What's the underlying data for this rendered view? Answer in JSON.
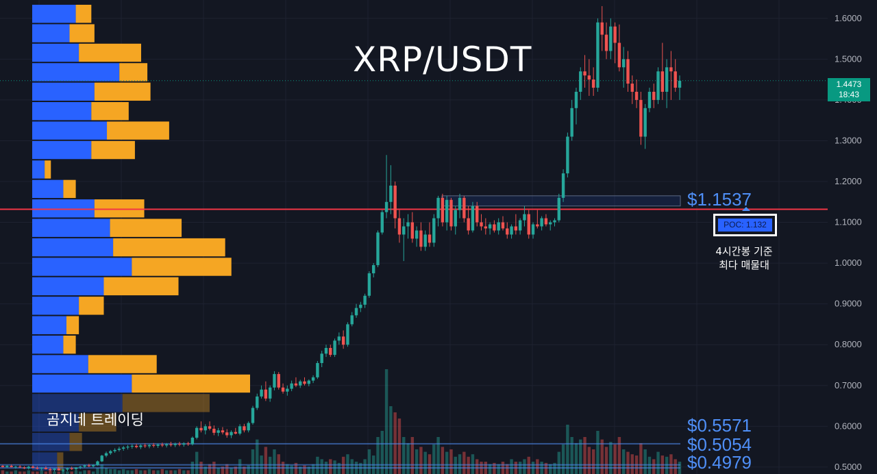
{
  "header": {
    "title": "XRP/USDT",
    "watermark": "곰지네 트레이딩"
  },
  "last_price": {
    "value": "1.4473",
    "countdown": "18:43",
    "color": "#089981"
  },
  "levels": {
    "resistance_label": "$1.1537",
    "support_labels": [
      "$0.5571",
      "$0.5054",
      "$0.4979"
    ],
    "accent_color": "#4f8ff7",
    "poc_line_color": "#f23645"
  },
  "poc": {
    "label": "POC: 1.132",
    "note_line1": "4시간봉 기준",
    "note_line2": "최다 매물대"
  },
  "chart_data": {
    "type": "candlestick",
    "title": "XRP/USDT",
    "ylim": [
      0.483,
      1.645
    ],
    "y_ticks": [
      "1.6000",
      "1.5000",
      "1.4000",
      "1.3000",
      "1.2000",
      "1.1000",
      "1.0000",
      "0.9000",
      "0.8000",
      "0.7000",
      "0.6000",
      "0.5000"
    ],
    "y_tick_values": [
      1.6,
      1.5,
      1.4,
      1.3,
      1.2,
      1.1,
      1.0,
      0.9,
      0.8,
      0.7,
      0.6,
      0.5
    ],
    "grid": true,
    "horizontal_lines": [
      {
        "value": 1.132,
        "color": "#f23645"
      },
      {
        "value": 1.4473,
        "color": "#089981",
        "style": "dotted"
      },
      {
        "value": 0.5571,
        "color": "#4f8ff7"
      },
      {
        "value": 0.5054,
        "color": "#4f8ff7"
      },
      {
        "value": 0.4979,
        "color": "#4f8ff7"
      }
    ],
    "volume_profile": {
      "price_low": 0.49,
      "price_high": 1.635,
      "buy_color": "#2962ff",
      "sell_color": "#f5a623",
      "rows": [
        [
          14,
          5
        ],
        [
          12,
          8
        ],
        [
          15,
          20
        ],
        [
          28,
          9
        ],
        [
          20,
          18
        ],
        [
          19,
          12
        ],
        [
          24,
          20
        ],
        [
          19,
          14
        ],
        [
          4,
          2
        ],
        [
          10,
          4
        ],
        [
          20,
          16
        ],
        [
          25,
          23
        ],
        [
          26,
          36
        ],
        [
          32,
          32
        ],
        [
          23,
          24
        ],
        [
          15,
          8
        ],
        [
          11,
          4
        ],
        [
          10,
          4
        ],
        [
          18,
          22
        ],
        [
          32,
          38
        ],
        [
          29,
          28
        ],
        [
          15,
          12
        ],
        [
          12,
          4
        ],
        [
          8,
          2
        ]
      ]
    },
    "candles": [
      [
        0.503,
        0.505,
        0.499,
        0.5
      ],
      [
        0.5,
        0.505,
        0.498,
        0.503
      ],
      [
        0.503,
        0.506,
        0.499,
        0.5
      ],
      [
        0.5,
        0.503,
        0.496,
        0.501
      ],
      [
        0.501,
        0.505,
        0.498,
        0.499
      ],
      [
        0.499,
        0.502,
        0.495,
        0.497
      ],
      [
        0.497,
        0.503,
        0.494,
        0.501
      ],
      [
        0.501,
        0.504,
        0.497,
        0.498
      ],
      [
        0.498,
        0.502,
        0.494,
        0.496
      ],
      [
        0.496,
        0.5,
        0.492,
        0.498
      ],
      [
        0.498,
        0.502,
        0.494,
        0.495
      ],
      [
        0.495,
        0.499,
        0.49,
        0.493
      ],
      [
        0.493,
        0.498,
        0.489,
        0.496
      ],
      [
        0.496,
        0.5,
        0.491,
        0.492
      ],
      [
        0.492,
        0.496,
        0.488,
        0.494
      ],
      [
        0.494,
        0.499,
        0.49,
        0.497
      ],
      [
        0.497,
        0.501,
        0.493,
        0.495
      ],
      [
        0.495,
        0.5,
        0.492,
        0.499
      ],
      [
        0.499,
        0.503,
        0.495,
        0.501
      ],
      [
        0.501,
        0.506,
        0.498,
        0.504
      ],
      [
        0.504,
        0.508,
        0.5,
        0.502
      ],
      [
        0.502,
        0.507,
        0.499,
        0.505
      ],
      [
        0.505,
        0.516,
        0.503,
        0.514
      ],
      [
        0.514,
        0.53,
        0.512,
        0.528
      ],
      [
        0.528,
        0.538,
        0.524,
        0.534
      ],
      [
        0.534,
        0.542,
        0.53,
        0.539
      ],
      [
        0.539,
        0.546,
        0.535,
        0.542
      ],
      [
        0.542,
        0.55,
        0.538,
        0.545
      ],
      [
        0.545,
        0.552,
        0.54,
        0.548
      ],
      [
        0.548,
        0.554,
        0.543,
        0.55
      ],
      [
        0.55,
        0.556,
        0.545,
        0.552
      ],
      [
        0.552,
        0.557,
        0.546,
        0.549
      ],
      [
        0.549,
        0.556,
        0.544,
        0.553
      ],
      [
        0.553,
        0.558,
        0.547,
        0.551
      ],
      [
        0.551,
        0.557,
        0.546,
        0.554
      ],
      [
        0.554,
        0.559,
        0.548,
        0.552
      ],
      [
        0.552,
        0.558,
        0.547,
        0.555
      ],
      [
        0.555,
        0.56,
        0.549,
        0.553
      ],
      [
        0.553,
        0.559,
        0.548,
        0.556
      ],
      [
        0.556,
        0.562,
        0.55,
        0.554
      ],
      [
        0.554,
        0.56,
        0.549,
        0.557
      ],
      [
        0.557,
        0.562,
        0.551,
        0.555
      ],
      [
        0.555,
        0.561,
        0.55,
        0.558
      ],
      [
        0.558,
        0.562,
        0.552,
        0.556
      ],
      [
        0.556,
        0.575,
        0.553,
        0.572
      ],
      [
        0.572,
        0.6,
        0.568,
        0.596
      ],
      [
        0.596,
        0.612,
        0.585,
        0.59
      ],
      [
        0.59,
        0.605,
        0.58,
        0.6
      ],
      [
        0.6,
        0.612,
        0.59,
        0.594
      ],
      [
        0.594,
        0.602,
        0.578,
        0.584
      ],
      [
        0.584,
        0.596,
        0.576,
        0.59
      ],
      [
        0.59,
        0.598,
        0.58,
        0.585
      ],
      [
        0.585,
        0.593,
        0.572,
        0.578
      ],
      [
        0.578,
        0.59,
        0.571,
        0.586
      ],
      [
        0.586,
        0.596,
        0.58,
        0.582
      ],
      [
        0.582,
        0.605,
        0.578,
        0.6
      ],
      [
        0.6,
        0.606,
        0.585,
        0.59
      ],
      [
        0.59,
        0.612,
        0.585,
        0.608
      ],
      [
        0.608,
        0.65,
        0.604,
        0.645
      ],
      [
        0.645,
        0.68,
        0.64,
        0.673
      ],
      [
        0.673,
        0.7,
        0.668,
        0.69
      ],
      [
        0.69,
        0.71,
        0.662,
        0.668
      ],
      [
        0.668,
        0.7,
        0.66,
        0.695
      ],
      [
        0.695,
        0.735,
        0.688,
        0.728
      ],
      [
        0.728,
        0.733,
        0.69,
        0.695
      ],
      [
        0.695,
        0.705,
        0.68,
        0.685
      ],
      [
        0.685,
        0.7,
        0.675,
        0.692
      ],
      [
        0.692,
        0.712,
        0.686,
        0.705
      ],
      [
        0.705,
        0.72,
        0.696,
        0.7
      ],
      [
        0.7,
        0.714,
        0.694,
        0.71
      ],
      [
        0.71,
        0.72,
        0.7,
        0.704
      ],
      [
        0.704,
        0.715,
        0.698,
        0.712
      ],
      [
        0.712,
        0.725,
        0.706,
        0.72
      ],
      [
        0.72,
        0.76,
        0.716,
        0.755
      ],
      [
        0.755,
        0.785,
        0.745,
        0.778
      ],
      [
        0.778,
        0.8,
        0.77,
        0.792
      ],
      [
        0.792,
        0.8,
        0.77,
        0.775
      ],
      [
        0.775,
        0.815,
        0.77,
        0.81
      ],
      [
        0.81,
        0.83,
        0.8,
        0.82
      ],
      [
        0.82,
        0.835,
        0.79,
        0.8
      ],
      [
        0.8,
        0.855,
        0.795,
        0.85
      ],
      [
        0.85,
        0.88,
        0.845,
        0.872
      ],
      [
        0.872,
        0.9,
        0.866,
        0.89
      ],
      [
        0.89,
        0.905,
        0.88,
        0.898
      ],
      [
        0.898,
        0.925,
        0.89,
        0.92
      ],
      [
        0.92,
        0.98,
        0.915,
        0.975
      ],
      [
        0.975,
        1.0,
        0.965,
        0.995
      ],
      [
        0.995,
        1.08,
        0.99,
        1.075
      ],
      [
        1.075,
        1.13,
        1.07,
        1.125
      ],
      [
        1.125,
        1.265,
        1.11,
        1.15
      ],
      [
        1.15,
        1.24,
        1.12,
        1.19
      ],
      [
        1.19,
        1.2,
        1.085,
        1.11
      ],
      [
        1.11,
        1.13,
        1.05,
        1.07
      ],
      [
        1.07,
        1.11,
        1.005,
        1.09
      ],
      [
        1.09,
        1.12,
        1.06,
        1.1
      ],
      [
        1.1,
        1.125,
        1.05,
        1.06
      ],
      [
        1.06,
        1.09,
        1.04,
        1.08
      ],
      [
        1.08,
        1.1,
        1.03,
        1.04
      ],
      [
        1.04,
        1.08,
        1.03,
        1.07
      ],
      [
        1.07,
        1.1,
        1.04,
        1.05
      ],
      [
        1.05,
        1.12,
        1.04,
        1.11
      ],
      [
        1.11,
        1.165,
        1.09,
        1.16
      ],
      [
        1.16,
        1.17,
        1.09,
        1.1
      ],
      [
        1.1,
        1.165,
        1.08,
        1.155
      ],
      [
        1.155,
        1.16,
        1.08,
        1.09
      ],
      [
        1.09,
        1.14,
        1.07,
        1.13
      ],
      [
        1.13,
        1.17,
        1.11,
        1.16
      ],
      [
        1.16,
        1.165,
        1.1,
        1.11
      ],
      [
        1.11,
        1.14,
        1.07,
        1.08
      ],
      [
        1.08,
        1.15,
        1.075,
        1.14
      ],
      [
        1.14,
        1.15,
        1.09,
        1.1
      ],
      [
        1.1,
        1.12,
        1.08,
        1.09
      ],
      [
        1.09,
        1.11,
        1.07,
        1.085
      ],
      [
        1.085,
        1.1,
        1.07,
        1.095
      ],
      [
        1.095,
        1.105,
        1.075,
        1.08
      ],
      [
        1.08,
        1.11,
        1.07,
        1.1
      ],
      [
        1.1,
        1.115,
        1.08,
        1.085
      ],
      [
        1.085,
        1.1,
        1.06,
        1.07
      ],
      [
        1.07,
        1.095,
        1.06,
        1.09
      ],
      [
        1.09,
        1.12,
        1.07,
        1.08
      ],
      [
        1.08,
        1.11,
        1.07,
        1.105
      ],
      [
        1.105,
        1.14,
        1.09,
        1.12
      ],
      [
        1.12,
        1.13,
        1.06,
        1.07
      ],
      [
        1.07,
        1.1,
        1.06,
        1.095
      ],
      [
        1.095,
        1.13,
        1.085,
        1.09
      ],
      [
        1.09,
        1.115,
        1.08,
        1.11
      ],
      [
        1.11,
        1.12,
        1.09,
        1.095
      ],
      [
        1.095,
        1.105,
        1.08,
        1.1
      ],
      [
        1.1,
        1.11,
        1.09,
        1.105
      ],
      [
        1.105,
        1.17,
        1.1,
        1.16
      ],
      [
        1.16,
        1.23,
        1.15,
        1.22
      ],
      [
        1.22,
        1.32,
        1.21,
        1.31
      ],
      [
        1.31,
        1.4,
        1.3,
        1.38
      ],
      [
        1.38,
        1.43,
        1.34,
        1.42
      ],
      [
        1.42,
        1.48,
        1.4,
        1.47
      ],
      [
        1.47,
        1.51,
        1.43,
        1.46
      ],
      [
        1.46,
        1.5,
        1.41,
        1.45
      ],
      [
        1.45,
        1.48,
        1.41,
        1.43
      ],
      [
        1.43,
        1.6,
        1.42,
        1.59
      ],
      [
        1.59,
        1.63,
        1.52,
        1.56
      ],
      [
        1.56,
        1.59,
        1.5,
        1.52
      ],
      [
        1.52,
        1.6,
        1.5,
        1.58
      ],
      [
        1.58,
        1.59,
        1.49,
        1.54
      ],
      [
        1.54,
        1.585,
        1.47,
        1.48
      ],
      [
        1.48,
        1.53,
        1.43,
        1.5
      ],
      [
        1.5,
        1.52,
        1.42,
        1.44
      ],
      [
        1.44,
        1.46,
        1.39,
        1.42
      ],
      [
        1.42,
        1.45,
        1.38,
        1.4
      ],
      [
        1.4,
        1.42,
        1.29,
        1.31
      ],
      [
        1.31,
        1.39,
        1.28,
        1.38
      ],
      [
        1.38,
        1.43,
        1.37,
        1.42
      ],
      [
        1.42,
        1.44,
        1.38,
        1.4
      ],
      [
        1.4,
        1.48,
        1.39,
        1.47
      ],
      [
        1.47,
        1.54,
        1.4,
        1.42
      ],
      [
        1.42,
        1.5,
        1.38,
        1.48
      ],
      [
        1.48,
        1.52,
        1.4,
        1.47
      ],
      [
        1.47,
        1.5,
        1.42,
        1.43
      ],
      [
        1.43,
        1.46,
        1.4,
        1.447
      ]
    ],
    "volumes": [
      0.03,
      0.02,
      0.02,
      0.03,
      0.02,
      0.02,
      0.03,
      0.02,
      0.02,
      0.03,
      0.02,
      0.03,
      0.02,
      0.02,
      0.03,
      0.02,
      0.02,
      0.03,
      0.02,
      0.03,
      0.03,
      0.02,
      0.05,
      0.08,
      0.05,
      0.04,
      0.04,
      0.03,
      0.04,
      0.03,
      0.03,
      0.04,
      0.03,
      0.03,
      0.04,
      0.03,
      0.03,
      0.04,
      0.03,
      0.03,
      0.03,
      0.04,
      0.03,
      0.03,
      0.1,
      0.18,
      0.1,
      0.06,
      0.08,
      0.1,
      0.05,
      0.06,
      0.08,
      0.05,
      0.06,
      0.12,
      0.06,
      0.07,
      0.2,
      0.28,
      0.15,
      0.22,
      0.14,
      0.2,
      0.16,
      0.1,
      0.08,
      0.07,
      0.09,
      0.06,
      0.07,
      0.06,
      0.08,
      0.14,
      0.12,
      0.1,
      0.12,
      0.11,
      0.09,
      0.14,
      0.16,
      0.12,
      0.1,
      0.09,
      0.12,
      0.2,
      0.15,
      0.3,
      0.35,
      0.85,
      0.55,
      0.5,
      0.45,
      0.3,
      0.25,
      0.3,
      0.2,
      0.22,
      0.18,
      0.16,
      0.24,
      0.3,
      0.22,
      0.18,
      0.2,
      0.14,
      0.16,
      0.18,
      0.14,
      0.16,
      0.12,
      0.1,
      0.1,
      0.08,
      0.09,
      0.08,
      0.1,
      0.08,
      0.12,
      0.1,
      0.1,
      0.12,
      0.14,
      0.1,
      0.12,
      0.1,
      0.09,
      0.08,
      0.09,
      0.18,
      0.24,
      0.4,
      0.3,
      0.25,
      0.28,
      0.3,
      0.22,
      0.2,
      0.35,
      0.28,
      0.22,
      0.26,
      0.24,
      0.3,
      0.2,
      0.18,
      0.16,
      0.15,
      0.25,
      0.2,
      0.14,
      0.12,
      0.18,
      0.15,
      0.14,
      0.16,
      0.12,
      0.1
    ]
  }
}
